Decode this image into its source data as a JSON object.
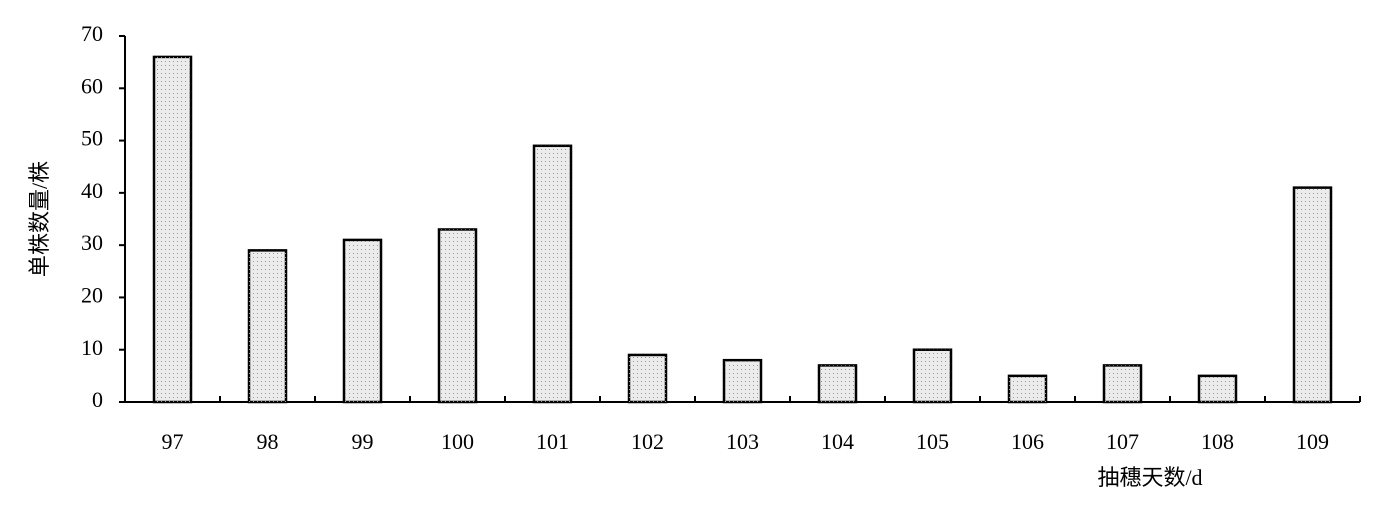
{
  "chart_data": {
    "type": "bar",
    "x_label": "抽穗天数/d",
    "y_label": "单株数量/株",
    "categories": [
      "97",
      "98",
      "99",
      "100",
      "101",
      "102",
      "103",
      "104",
      "105",
      "106",
      "107",
      "108",
      "109"
    ],
    "values": [
      66,
      29,
      31,
      33,
      49,
      9,
      8,
      7,
      10,
      5,
      7,
      5,
      41
    ],
    "color": "#ececec",
    "ylim": [
      0,
      70
    ],
    "yticks": [
      0,
      10,
      20,
      30,
      40,
      50,
      60,
      70
    ],
    "grid": false
  }
}
